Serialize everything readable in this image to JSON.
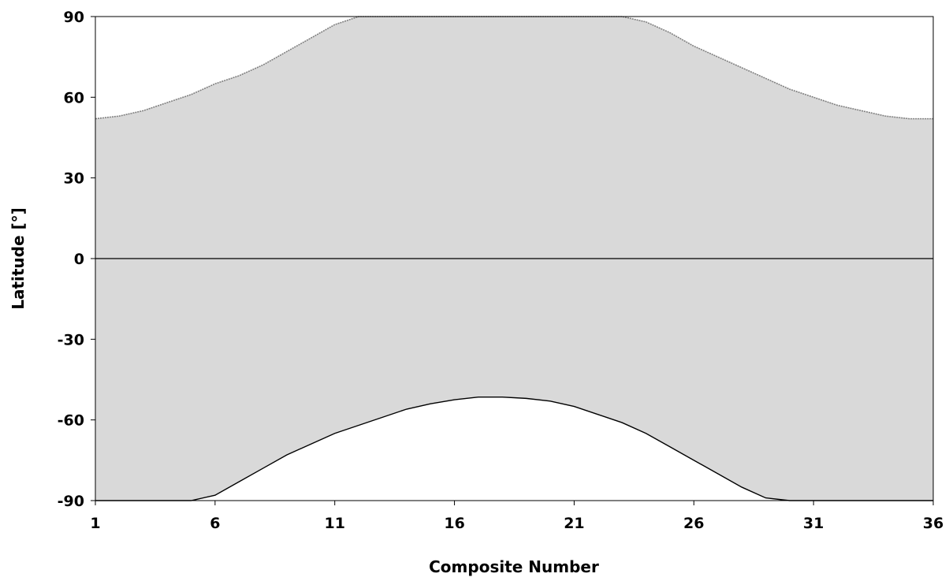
{
  "chart_data": {
    "type": "area",
    "xlabel": "Composite Number",
    "ylabel": "Latitude [°]",
    "xlim": [
      1,
      36
    ],
    "ylim": [
      -90,
      90
    ],
    "x_ticks": [
      1,
      6,
      11,
      16,
      21,
      26,
      31,
      36
    ],
    "y_ticks": [
      90,
      60,
      30,
      0,
      -30,
      -60,
      -90
    ],
    "grid": false,
    "legend": "none",
    "colors": {
      "fill": "#d9d9d9",
      "upper_line": "#808080",
      "lower_line": "#000000",
      "zero_line": "#000000"
    },
    "series": [
      {
        "role": "upper_boundary",
        "x": [
          1,
          2,
          3,
          4,
          5,
          6,
          7,
          8,
          9,
          10,
          11,
          12,
          13,
          14,
          15,
          16,
          17,
          18,
          19,
          20,
          21,
          22,
          23,
          24,
          25,
          26,
          27,
          28,
          29,
          30,
          31,
          32,
          33,
          34,
          35,
          36
        ],
        "values": [
          52,
          53,
          55,
          58,
          61,
          65,
          68,
          72,
          77,
          82,
          87,
          90,
          90,
          90,
          90,
          90,
          90,
          90,
          90,
          90,
          90,
          90,
          90,
          88,
          84,
          79,
          75,
          71,
          67,
          63,
          60,
          57,
          55,
          53,
          52,
          52
        ]
      },
      {
        "role": "lower_boundary",
        "x": [
          1,
          2,
          3,
          4,
          5,
          6,
          7,
          8,
          9,
          10,
          11,
          12,
          13,
          14,
          15,
          16,
          17,
          18,
          19,
          20,
          21,
          22,
          23,
          24,
          25,
          26,
          27,
          28,
          29,
          30,
          31,
          32,
          33,
          34,
          35,
          36
        ],
        "values": [
          -90,
          -90,
          -90,
          -90,
          -90,
          -88,
          -83,
          -78,
          -73,
          -69,
          -65,
          -62,
          -59,
          -56,
          -54,
          -52.5,
          -51.5,
          -51.5,
          -52,
          -53,
          -55,
          -58,
          -61,
          -65,
          -70,
          -75,
          -80,
          -85,
          -89,
          -90,
          -90,
          -90,
          -90,
          -90,
          -90,
          -90
        ]
      },
      {
        "role": "zero_line",
        "x": [
          1,
          36
        ],
        "values": [
          0,
          0
        ]
      }
    ]
  }
}
